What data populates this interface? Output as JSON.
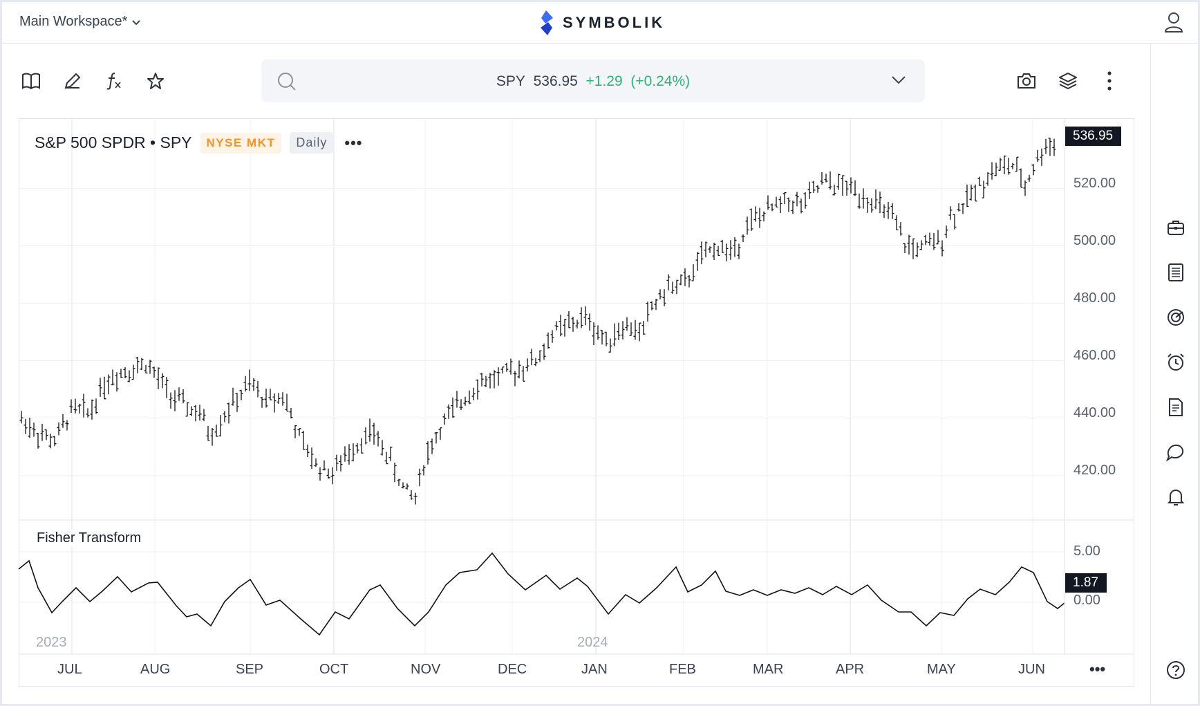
{
  "topbar": {
    "workspace_label": "Main Workspace*",
    "brand_name": "SYMBOLIK"
  },
  "toolbar": {
    "icons": [
      "book-icon",
      "pencil-icon",
      "function-icon",
      "star-icon"
    ],
    "right_icons": [
      "camera-icon",
      "layers-icon",
      "more-vertical-icon"
    ]
  },
  "quote": {
    "symbol": "SPY",
    "price": "536.95",
    "change": "+1.29",
    "change_pct": "(+0.24%)",
    "up_color": "#2bb673"
  },
  "chart": {
    "title": "S&P 500 SPDR • SPY",
    "exchange": "NYSE MKT",
    "interval": "Daily",
    "last_price": "536.95",
    "indicator_name": "Fisher Transform",
    "indicator_value": "1.87",
    "year_labels": [
      "2023",
      "2024"
    ],
    "more_label": "•••"
  },
  "chart_data": [
    {
      "type": "ohlc",
      "series": [
        {
          "name": "SPY",
          "description": "daily OHLC bars, approx closes by month start"
        }
      ],
      "x": [
        "JUL",
        "AUG",
        "SEP",
        "OCT",
        "NOV",
        "DEC",
        "JAN",
        "FEB",
        "MAR",
        "APR",
        "MAY",
        "JUN"
      ],
      "approx_close_at_month_start": [
        443,
        456,
        450,
        428,
        418,
        457,
        470,
        490,
        512,
        522,
        502,
        528
      ],
      "yticks": [
        "420.00",
        "440.00",
        "460.00",
        "480.00",
        "500.00",
        "520.00"
      ],
      "ylim": [
        405,
        542
      ],
      "last": 536.95
    },
    {
      "type": "line",
      "series": [
        {
          "name": "Fisher Transform"
        }
      ],
      "yticks": [
        "5.00",
        "0.00"
      ],
      "last": 1.87
    }
  ],
  "sidebar": {
    "icons": [
      "briefcase-icon",
      "news-list-icon",
      "radar-icon",
      "alarm-clock-icon",
      "report-icon",
      "chat-icon",
      "bell-icon",
      "help-icon"
    ]
  }
}
